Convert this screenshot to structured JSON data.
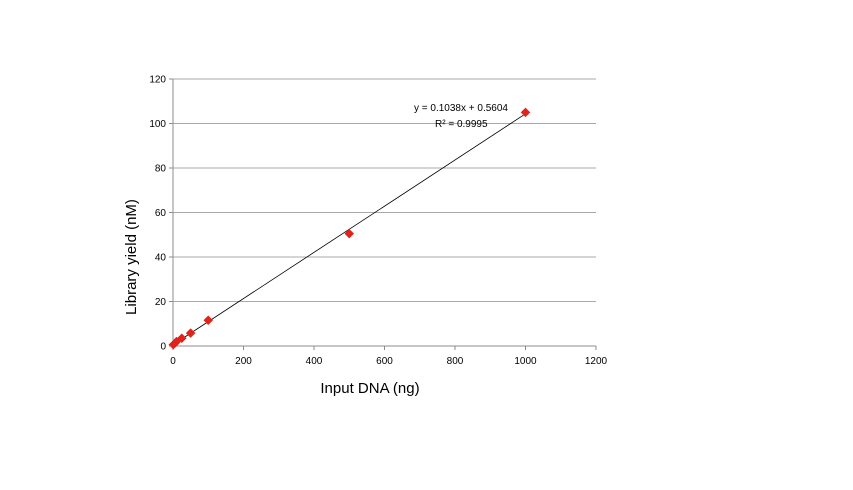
{
  "chart_data": {
    "type": "scatter",
    "title": "",
    "xlabel": "Input DNA (ng)",
    "ylabel": "Library yield (nM)",
    "xlim": [
      0,
      1200
    ],
    "ylim": [
      0,
      120
    ],
    "x_ticks": [
      0,
      200,
      400,
      600,
      800,
      1000,
      1200
    ],
    "y_ticks": [
      0,
      20,
      40,
      60,
      80,
      100,
      120
    ],
    "x_tick_labels": [
      "0",
      "200",
      "400",
      "600",
      "800",
      "1000",
      "1200"
    ],
    "y_tick_labels": [
      "0",
      "20",
      "40",
      "60",
      "80",
      "100",
      "120"
    ],
    "grid": {
      "horizontal": true,
      "vertical": false
    },
    "legend": "none",
    "series": [
      {
        "marker": "diamond",
        "color": "#e2231a",
        "x": [
          1,
          5,
          10,
          25,
          50,
          100,
          500,
          1000
        ],
        "y": [
          0.6,
          1.2,
          2.0,
          3.5,
          5.8,
          11.6,
          50.5,
          105.0
        ]
      }
    ],
    "trendline": {
      "type": "linear",
      "slope": 0.1038,
      "intercept": 0.5604,
      "color": "#000000",
      "equation_label": "y = 0.1038x + 0.5604",
      "r2_label": "R² = 0.9995"
    }
  }
}
